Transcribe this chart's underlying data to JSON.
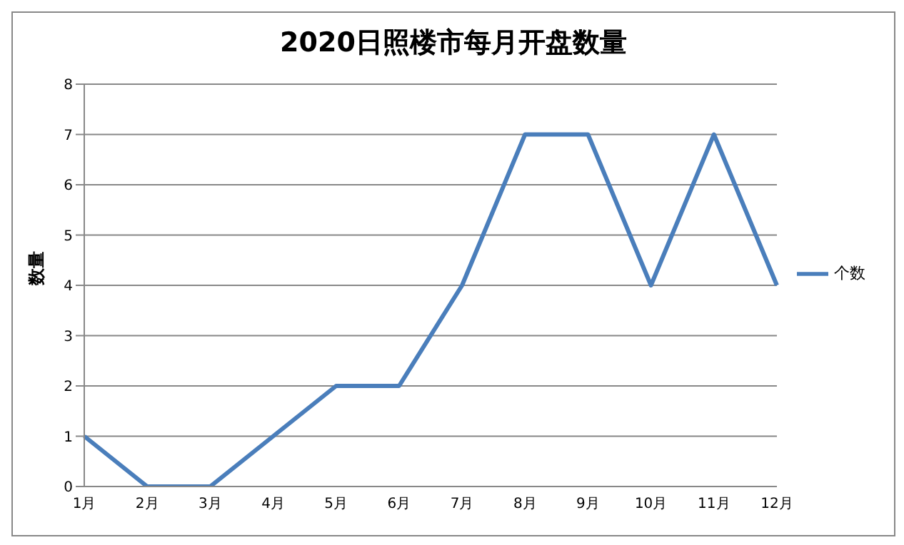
{
  "chart_data": {
    "type": "line",
    "title": "2020日照楼市每月开盘数量",
    "ylabel": "数量",
    "categories": [
      "1月",
      "2月",
      "3月",
      "4月",
      "5月",
      "6月",
      "7月",
      "8月",
      "9月",
      "10月",
      "11月",
      "12月"
    ],
    "series": [
      {
        "name": "个数",
        "color": "#4a7ebb",
        "values": [
          1,
          0,
          0,
          1,
          2,
          2,
          4,
          7,
          7,
          4,
          7,
          4
        ]
      }
    ],
    "ylim": [
      0,
      8
    ],
    "yticks": [
      0,
      1,
      2,
      3,
      4,
      5,
      6,
      7,
      8
    ],
    "grid": "y",
    "legend": "right",
    "marker": "none",
    "line_style": "solid"
  }
}
